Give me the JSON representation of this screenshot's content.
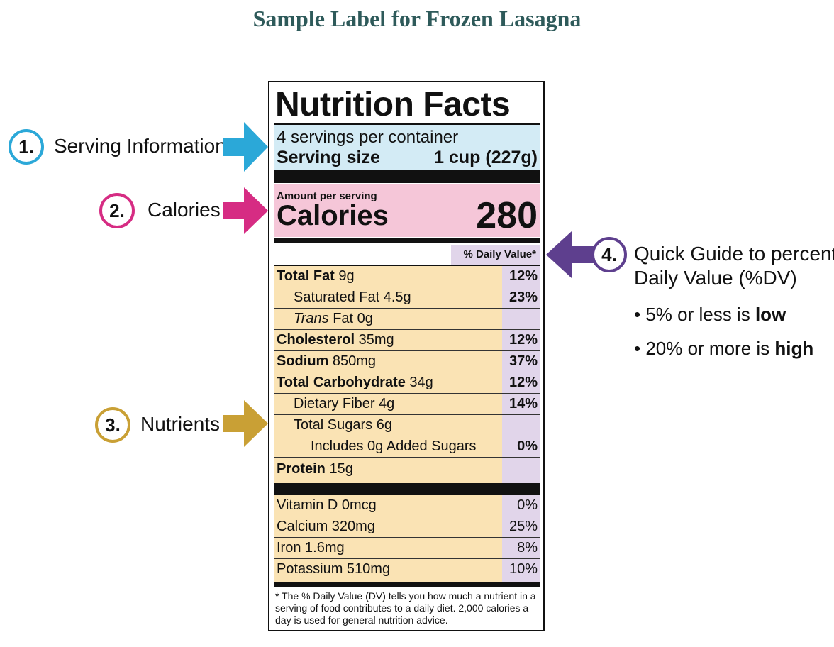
{
  "page": {
    "title": "Sample Label for Frozen Lasagna"
  },
  "label": {
    "title": "Nutrition Facts",
    "servings_per_container": "4 servings per container",
    "serving_size_label": "Serving size",
    "serving_size_value": "1 cup (227g)",
    "amount_per_serving": "Amount per serving",
    "calories_label": "Calories",
    "calories_value": "280",
    "dv_header": "% Daily Value*",
    "nutrients": [
      {
        "bold_name": "Total Fat",
        "rest": " 9g",
        "dv": "12%"
      },
      {
        "name": "Saturated Fat 4.5g",
        "dv": "23%"
      },
      {
        "italic": "Trans",
        "rest": " Fat 0g",
        "dv": ""
      },
      {
        "bold_name": "Cholesterol",
        "rest": " 35mg",
        "dv": "12%"
      },
      {
        "bold_name": "Sodium",
        "rest": " 850mg",
        "dv": "37%"
      },
      {
        "bold_name": "Total Carbohydrate",
        "rest": " 34g",
        "dv": "12%"
      },
      {
        "name": "Dietary Fiber 4g",
        "dv": "14%"
      },
      {
        "name": "Total Sugars 6g",
        "dv": ""
      },
      {
        "name": "Includes 0g Added Sugars",
        "dv": "0%"
      },
      {
        "bold_name": "Protein",
        "rest": " 15g",
        "dv": ""
      }
    ],
    "vitamins": [
      {
        "name": "Vitamin D 0mcg",
        "dv": "0%"
      },
      {
        "name": "Calcium 320mg",
        "dv": "25%"
      },
      {
        "name": "Iron 1.6mg",
        "dv": "8%"
      },
      {
        "name": "Potassium 510mg",
        "dv": "10%"
      }
    ],
    "footnote": "* The % Daily Value (DV) tells you how much a nutrient in a serving of food contributes to a daily diet. 2,000 calories a day is used for general nutrition advice."
  },
  "callouts": {
    "c1": {
      "number": "1.",
      "text": "Serving Information",
      "color": "#2ba8d8"
    },
    "c2": {
      "number": "2.",
      "text": "Calories",
      "color": "#d62c83"
    },
    "c3": {
      "number": "3.",
      "text": "Nutrients",
      "color": "#c9a035"
    },
    "c4": {
      "number": "4.",
      "line1": "Quick Guide to percent",
      "line2": "Daily Value (%DV)",
      "color": "#5e3f8e",
      "b1_prefix": "• 5% or less is ",
      "b1_bold": "low",
      "b2_prefix": "• 20% or more is ",
      "b2_bold": "high"
    }
  }
}
